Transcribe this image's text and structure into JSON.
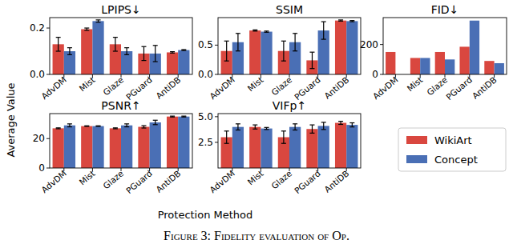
{
  "chart_data": [
    {
      "type": "bar",
      "title": "LPIPS↓",
      "categories": [
        "AdvDM",
        "Mist",
        "Glaze",
        "PGuard",
        "AntiDB"
      ],
      "series": [
        {
          "name": "WikiArt",
          "color": "#d9473f",
          "values": [
            0.13,
            0.195,
            0.13,
            0.09,
            0.095
          ],
          "errors": [
            0.03,
            0.005,
            0.03,
            0.03,
            0.003
          ]
        },
        {
          "name": "Concept",
          "color": "#4a6fb5",
          "values": [
            0.1,
            0.23,
            0.1,
            0.09,
            0.105
          ],
          "errors": [
            0.015,
            0.005,
            0.015,
            0.035,
            0.002
          ]
        }
      ],
      "ylim": [
        0,
        0.245
      ],
      "yticks": [
        {
          "value": 0,
          "label": "0.0"
        },
        0.2
      ]
    },
    {
      "type": "bar",
      "title": "SSIM",
      "categories": [
        "AdvDM",
        "Mist",
        "Glaze",
        "PGuard",
        "AntiDB"
      ],
      "series": [
        {
          "name": "WikiArt",
          "color": "#d9473f",
          "values": [
            0.4,
            0.75,
            0.4,
            0.24,
            0.92
          ],
          "errors": [
            0.17,
            0.01,
            0.17,
            0.14,
            0.01
          ]
        },
        {
          "name": "Concept",
          "color": "#4a6fb5",
          "values": [
            0.55,
            0.73,
            0.55,
            0.75,
            0.91
          ],
          "errors": [
            0.15,
            0.01,
            0.15,
            0.15,
            0.01
          ]
        }
      ],
      "ylim": [
        0,
        0.97
      ],
      "yticks": [
        {
          "value": 0,
          "label": "0.0"
        },
        0.5
      ]
    },
    {
      "type": "bar",
      "title": "FID↓",
      "categories": [
        "AdvDM",
        "Mist",
        "Glaze",
        "PGuard",
        "AntiDB"
      ],
      "series": [
        {
          "name": "WikiArt",
          "color": "#d9473f",
          "values": [
            150,
            110,
            150,
            185,
            90
          ]
        },
        {
          "name": "Concept",
          "color": "#4a6fb5",
          "values": [
            null,
            110,
            100,
            360,
            75
          ]
        }
      ],
      "ylim": [
        0,
        380
      ],
      "yticks": [
        0,
        200
      ]
    },
    {
      "type": "bar",
      "title": "PSNR↑",
      "categories": [
        "AdvDM",
        "Mist",
        "Glaze",
        "PGuard",
        "AntiDB"
      ],
      "series": [
        {
          "name": "WikiArt",
          "color": "#d9473f",
          "values": [
            27,
            28.5,
            27,
            28,
            35
          ],
          "errors": [
            0.3,
            0.2,
            0.3,
            0.8,
            0.3
          ]
        },
        {
          "name": "Concept",
          "color": "#4a6fb5",
          "values": [
            29,
            28.5,
            29,
            31,
            35
          ],
          "errors": [
            1,
            0.2,
            1,
            1.5,
            0.3
          ]
        }
      ],
      "ylim": [
        0,
        37
      ],
      "yticks": [
        0,
        20
      ]
    },
    {
      "type": "bar",
      "title": "VIFp↑",
      "categories": [
        "AdvDM",
        "Mist",
        "Glaze",
        "PGuard",
        "AntiDB"
      ],
      "series": [
        {
          "name": "WikiArt",
          "color": "#d9473f",
          "values": [
            3.0,
            4.0,
            3.0,
            3.8,
            4.4
          ],
          "errors": [
            0.6,
            0.2,
            0.6,
            0.4,
            0.15
          ]
        },
        {
          "name": "Concept",
          "color": "#4a6fb5",
          "values": [
            4.0,
            3.85,
            4.0,
            4.1,
            4.2
          ],
          "errors": [
            0.3,
            0.1,
            0.3,
            0.35,
            0.2
          ]
        }
      ],
      "ylim": [
        0,
        5.3
      ],
      "yticks": [
        2.5,
        {
          "value": 5,
          "label": "5.0"
        }
      ]
    }
  ],
  "figure": {
    "x_label": "Protection Method",
    "y_label": "Average Value",
    "caption": "Figure 3: Fidelity evaluation of Op."
  }
}
